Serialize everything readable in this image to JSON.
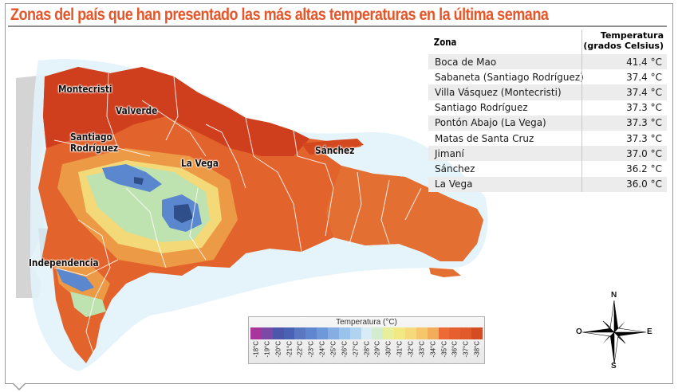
{
  "title": "Zonas del país que han presentado las más altas temperaturas en la última semana",
  "colors": {
    "title": "#e5572a",
    "frame": "#9a9a9a",
    "row_shade": "#ececec",
    "sea_light": "#e4f3fa",
    "land_hot": "#d9471f",
    "land_warm": "#e4682b"
  },
  "map": {
    "labels": [
      {
        "name": "Montecristi",
        "text": "Montecristi"
      },
      {
        "name": "Valverde",
        "text": "Valverde"
      },
      {
        "name": "Santiago Rodríguez",
        "line1": "Santiago",
        "line2": "Rodríguez"
      },
      {
        "name": "La Vega",
        "text": "La Vega"
      },
      {
        "name": "Sánchez",
        "text": "Sánchez"
      },
      {
        "name": "Independencia",
        "text": "Independencia"
      }
    ]
  },
  "table": {
    "header": {
      "zona": "Zona",
      "temp_line1": "Temperatura",
      "temp_line2": "(grados Celsius)"
    },
    "rows": [
      {
        "zona": "Boca de Mao",
        "temp": "41.4 °C"
      },
      {
        "zona": "Sabaneta (Santiago Rodríguez)",
        "temp": "37.4 °C"
      },
      {
        "zona": "Villa Vásquez (Montecristi)",
        "temp": "37.4 °C"
      },
      {
        "zona": "Santiago Rodríguez",
        "temp": "37.3 °C"
      },
      {
        "zona": "Pontón Abajo (La Vega)",
        "temp": "37.3 °C"
      },
      {
        "zona": "Matas de Santa Cruz",
        "temp": "37.3 °C"
      },
      {
        "zona": "Jimaní",
        "temp": "37.0 °C"
      },
      {
        "zona": "Sánchez",
        "temp": "36.2 °C"
      },
      {
        "zona": "La Vega",
        "temp": "36.0 °C"
      }
    ]
  },
  "legend": {
    "title": "Temperatura (°C)",
    "ticks": [
      "18°C",
      "19°C",
      "20°C",
      "21°C",
      "22°C",
      "23°C",
      "24°C",
      "25°C",
      "26°C",
      "27°C",
      "28°C",
      "29°C",
      "30°C",
      "31°C",
      "32°C",
      "33°C",
      "34°C",
      "35°C",
      "36°C",
      "37°C",
      "38°C"
    ],
    "colors": [
      "#a9359c",
      "#7a4aa6",
      "#4e56ab",
      "#4a62b3",
      "#5a77c2",
      "#5f86ce",
      "#6f98d8",
      "#86aee2",
      "#9ac3eb",
      "#b0d4f0",
      "#d7ecf6",
      "#d3eccf",
      "#e7ee9c",
      "#f2e983",
      "#f6d97a",
      "#f5c66a",
      "#f2ad5a",
      "#eb6a36",
      "#e6602f",
      "#e05a2c",
      "#d54c23"
    ]
  },
  "compass": {
    "n": "N",
    "s": "S",
    "e": "E",
    "w": "O"
  }
}
